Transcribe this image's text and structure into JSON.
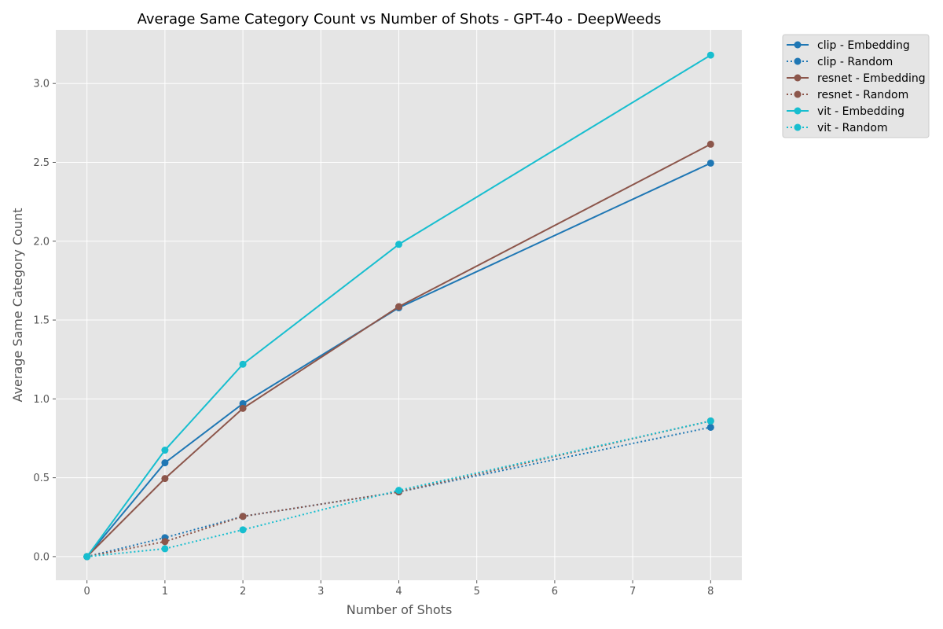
{
  "chart_data": {
    "type": "line",
    "title": "Average Same Category Count vs Number of Shots - GPT-4o - DeepWeeds",
    "xlabel": "Number of Shots",
    "ylabel": "Average Same Category Count",
    "xlim": [
      -0.4,
      8.4
    ],
    "ylim": [
      -0.15,
      3.34
    ],
    "xticks": [
      0,
      1,
      2,
      3,
      4,
      5,
      6,
      7,
      8
    ],
    "xtick_labels": [
      "0",
      "1",
      "2",
      "3",
      "4",
      "5",
      "6",
      "7",
      "8"
    ],
    "yticks": [
      0.0,
      0.5,
      1.0,
      1.5,
      2.0,
      2.5,
      3.0
    ],
    "ytick_labels": [
      "0.0",
      "0.5",
      "1.0",
      "1.5",
      "2.0",
      "2.5",
      "3.0"
    ],
    "grid": true,
    "legend_position": "outside-top-right",
    "colors": {
      "background": "#e5e5e5",
      "grid": "#ffffff"
    },
    "x": [
      0,
      1,
      2,
      4,
      8
    ],
    "series": [
      {
        "name": "clip - Embedding",
        "style": "solid",
        "color": "#1f77b4",
        "values": [
          0.0,
          0.595,
          0.97,
          1.578,
          2.495
        ]
      },
      {
        "name": "clip - Random",
        "style": "dotted",
        "color": "#1f77b4",
        "values": [
          0.0,
          0.12,
          0.255,
          0.41,
          0.82
        ]
      },
      {
        "name": "resnet - Embedding",
        "style": "solid",
        "color": "#8c564b",
        "values": [
          0.0,
          0.495,
          0.94,
          1.585,
          2.615
        ]
      },
      {
        "name": "resnet - Random",
        "style": "dotted",
        "color": "#8c564b",
        "values": [
          0.0,
          0.095,
          0.255,
          0.41,
          0.86
        ]
      },
      {
        "name": "vit - Embedding",
        "style": "solid",
        "color": "#17becf",
        "values": [
          0.0,
          0.675,
          1.22,
          1.98,
          3.18
        ]
      },
      {
        "name": "vit - Random",
        "style": "dotted",
        "color": "#17becf",
        "values": [
          0.0,
          0.05,
          0.17,
          0.42,
          0.86
        ]
      }
    ]
  }
}
